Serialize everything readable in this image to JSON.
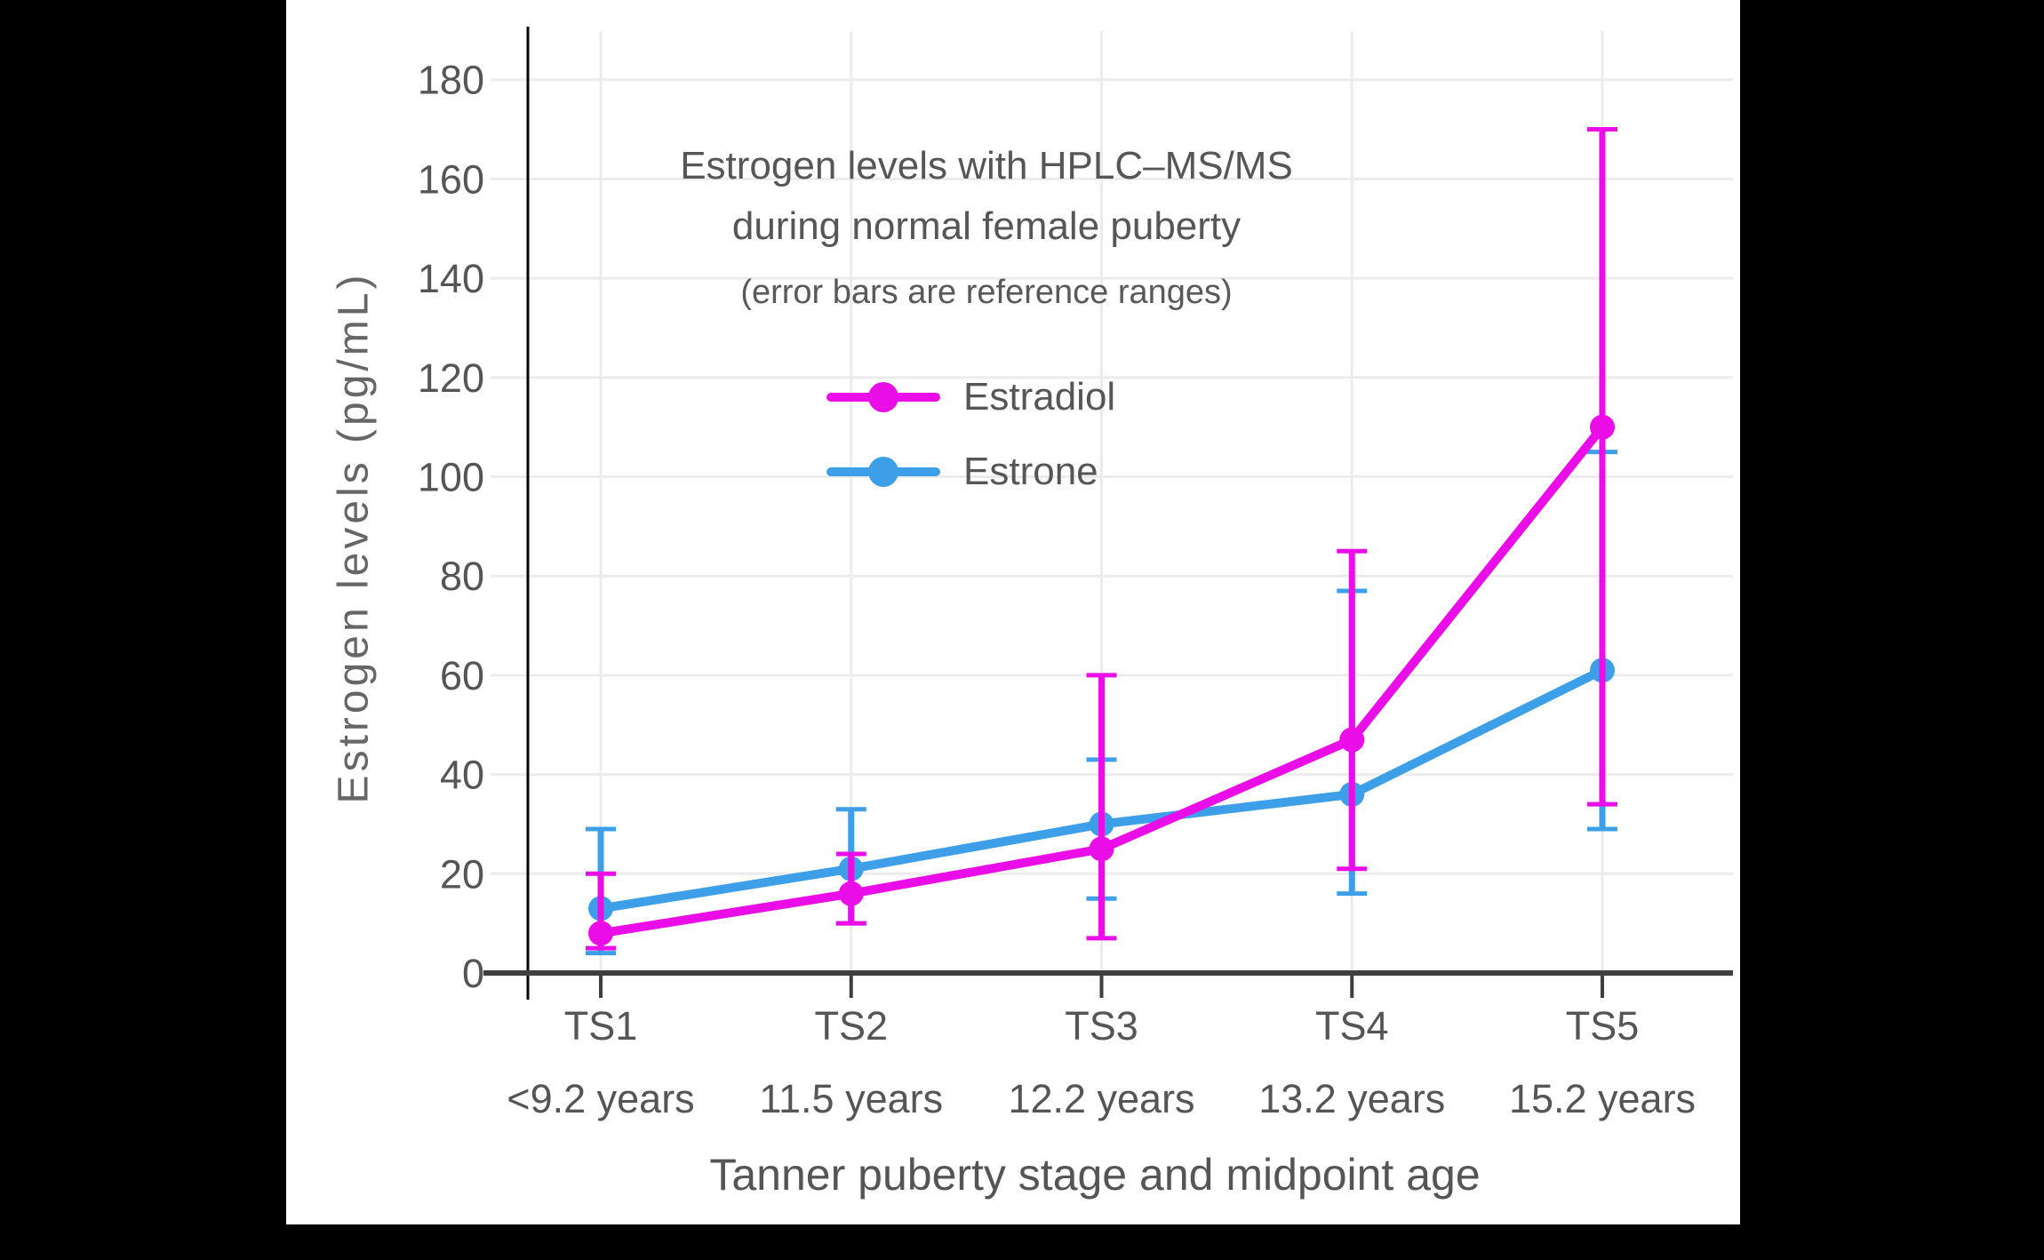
{
  "page": {
    "background": "#000000",
    "canvas_background": "#ffffff"
  },
  "title": {
    "line1": "Estrogen levels with HPLC–MS/MS",
    "line2": "during normal female puberty",
    "subtitle": "(error bars are reference ranges)"
  },
  "chart_data": {
    "type": "line",
    "title": "Estrogen levels with HPLC–MS/MS during normal female puberty",
    "subtitle": "(error bars are reference ranges)",
    "xlabel": "Tanner puberty stage and midpoint age",
    "ylabel": "Estrogen levels (pg/mL)",
    "units": "pg/mL",
    "grid": true,
    "legend_position": "upper left inside plot",
    "x_categories": [
      {
        "stage": "TS1",
        "age": "<9.2 years"
      },
      {
        "stage": "TS2",
        "age": "11.5 years"
      },
      {
        "stage": "TS3",
        "age": "12.2 years"
      },
      {
        "stage": "TS4",
        "age": "13.2 years"
      },
      {
        "stage": "TS5",
        "age": "15.2 years"
      }
    ],
    "y_ticks": [
      0,
      20,
      40,
      60,
      80,
      100,
      120,
      140,
      160,
      180
    ],
    "ylim": [
      0,
      190
    ],
    "series": [
      {
        "name": "Estradiol",
        "color": "#EA0DE8",
        "values": [
          8,
          16,
          25,
          47,
          110
        ],
        "error_low": [
          5,
          10,
          7,
          21,
          34
        ],
        "error_high": [
          20,
          24,
          60,
          85,
          170
        ]
      },
      {
        "name": "Estrone",
        "color": "#3D9FE8",
        "values": [
          13,
          21,
          30,
          36,
          61
        ],
        "error_low": [
          4,
          10,
          15,
          16,
          29
        ],
        "error_high": [
          29,
          33,
          43,
          77,
          105
        ]
      }
    ],
    "colors": {
      "grid": "#ececec",
      "x_axis": "#3f3f3f",
      "y_spine": "#050505",
      "tick_text": "#555555"
    }
  }
}
